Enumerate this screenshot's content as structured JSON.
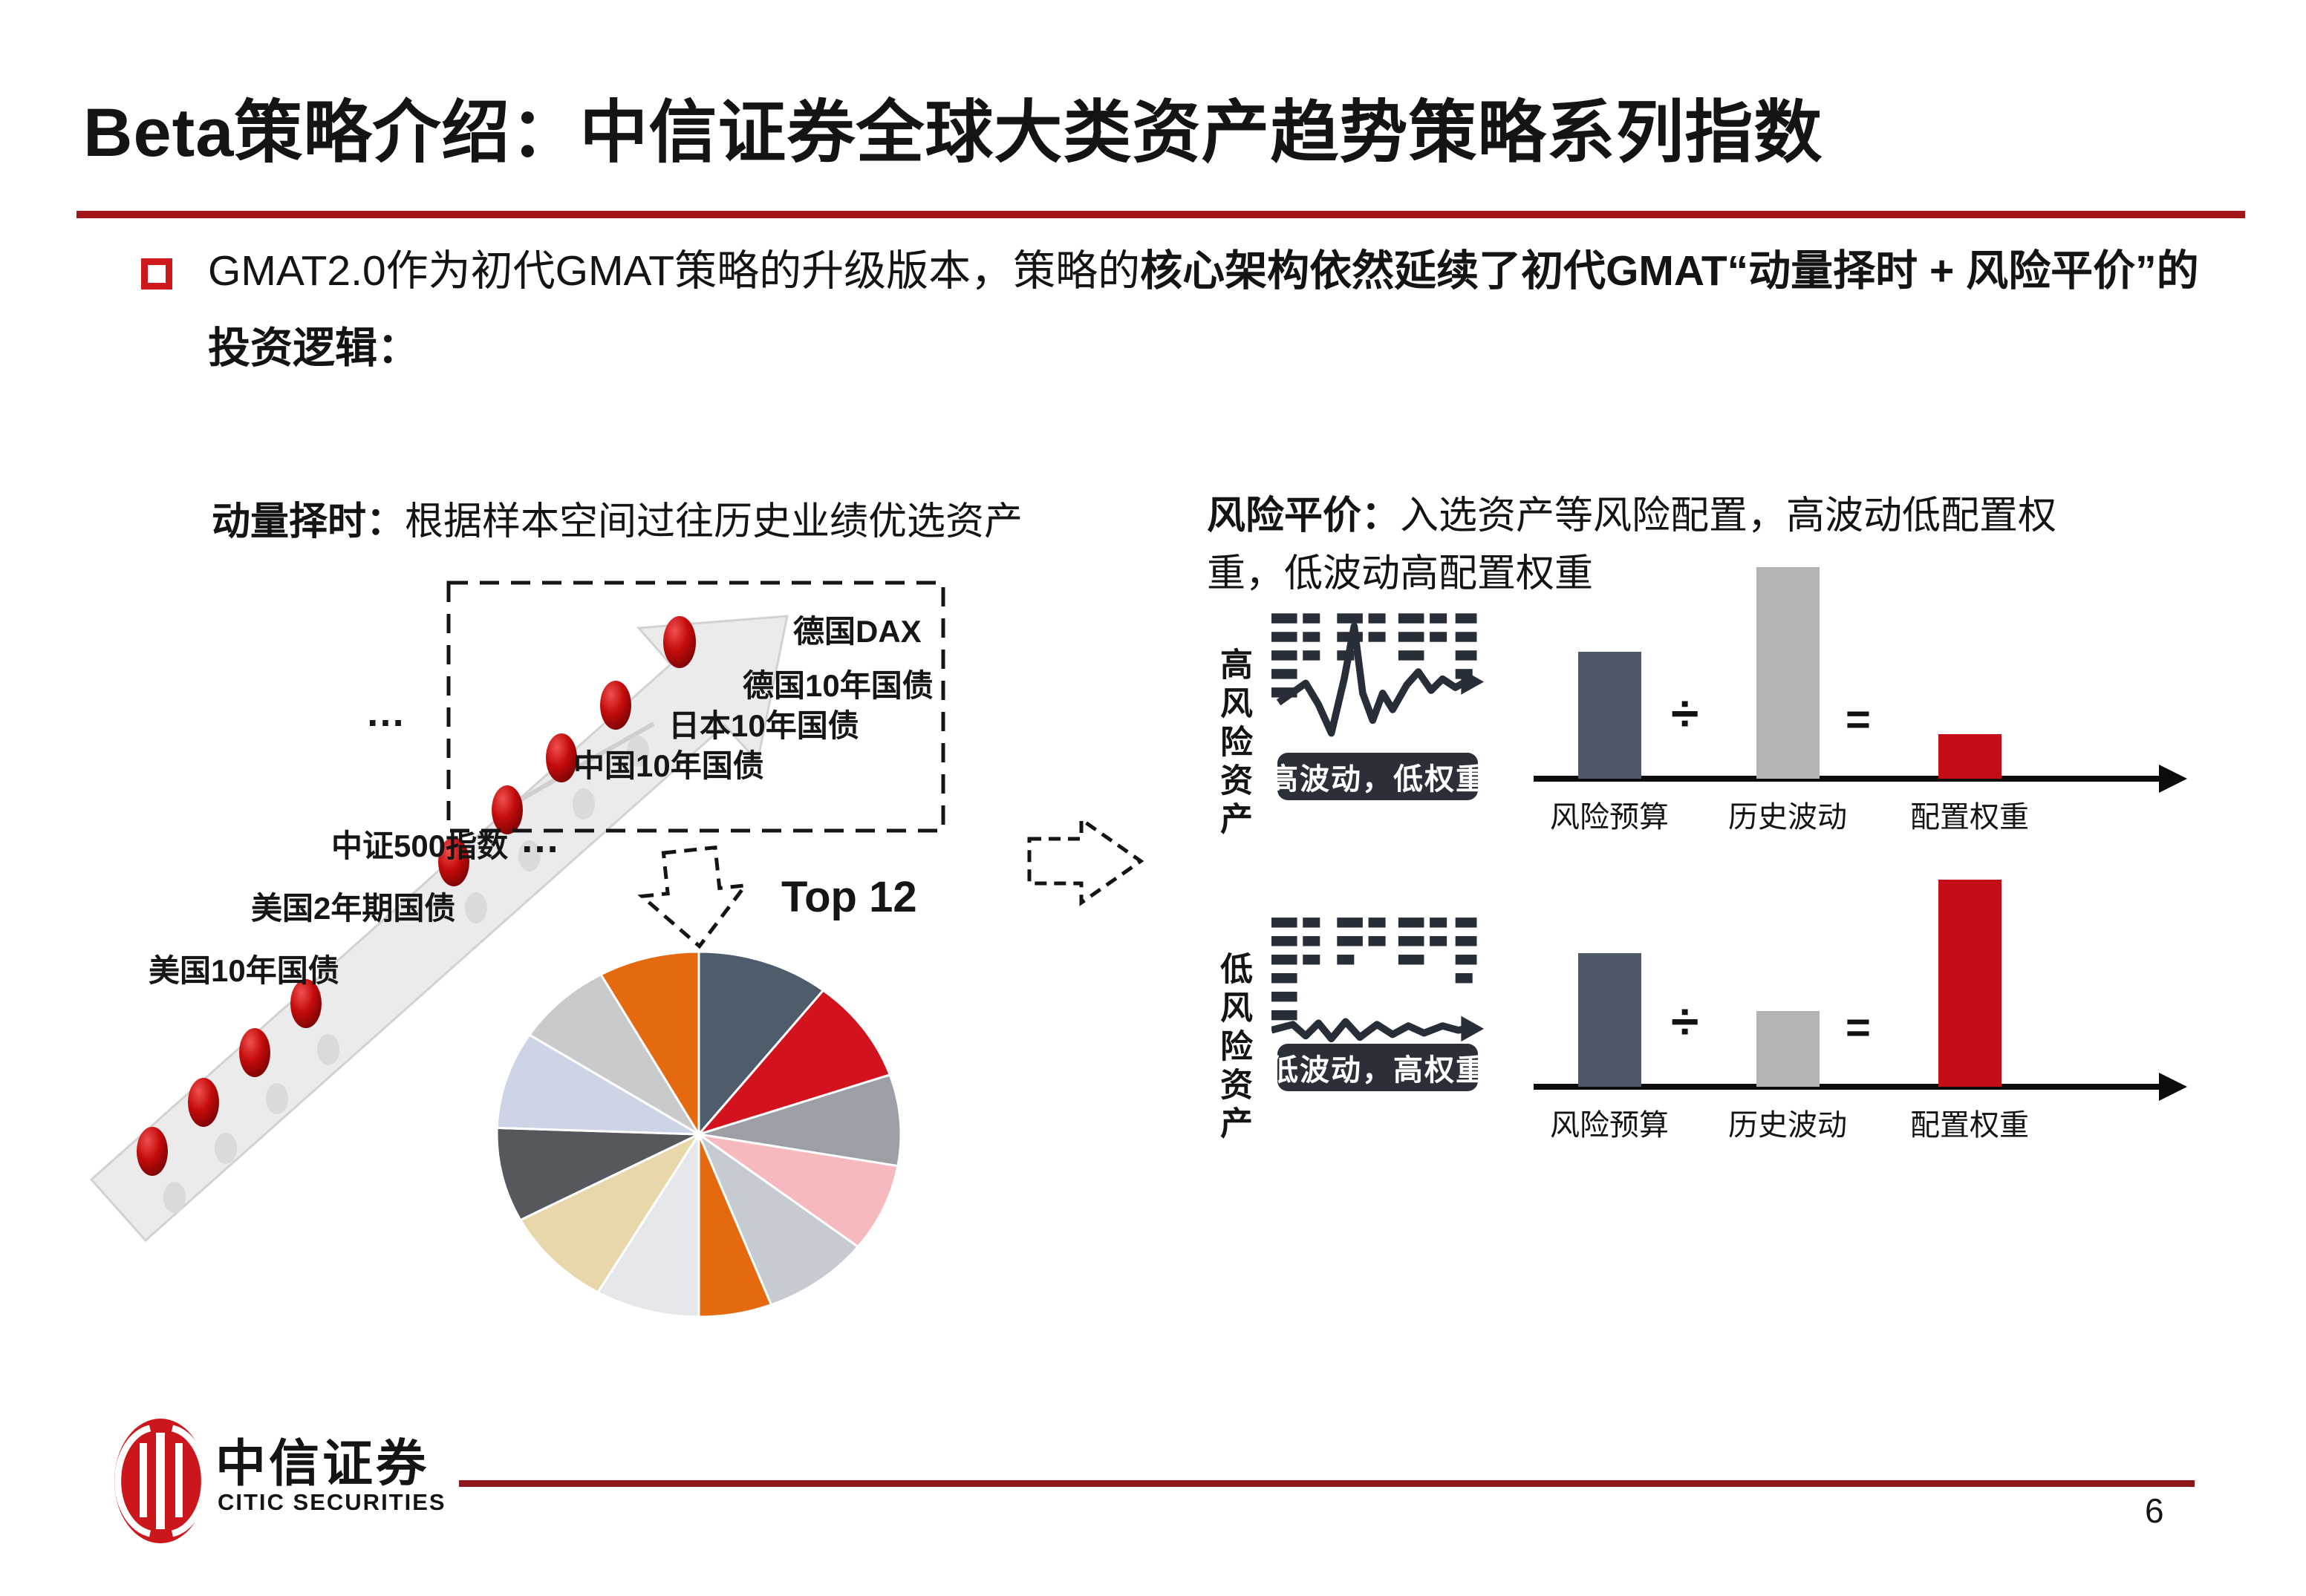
{
  "slide": {
    "title": "Beta策略介绍：中信证券全球大类资产趋势策略系列指数",
    "page_number": "6"
  },
  "bullet": {
    "line1_regular": "GMAT2.0作为初代GMAT策略的升级版本，策略的",
    "line1_bold": "核心架构依然延续了初代GMAT“动量择时 + 风险平价”的",
    "line2_bold": "投资逻辑："
  },
  "momentum": {
    "heading_bold": "动量择时：",
    "heading_rest": "根据样本空间过往历史业绩优选资产",
    "assets": [
      "德国DAX",
      "德国10年国债",
      "日本10年国债",
      "中国10年国债",
      "中证500指数",
      "美国2年期国债",
      "美国10年国债"
    ],
    "ellipsis": "…",
    "top_label": "Top 12"
  },
  "risk_parity": {
    "heading_bold": "风险平价：",
    "heading_rest_line1": "入选资产等风险配置，高波动低配置权",
    "heading_rest_line2": "重，低波动高配置权重",
    "high": {
      "side_label": "高风险资产",
      "badge": "高波动，低权重"
    },
    "low": {
      "side_label": "低风险资产",
      "badge": "低波动，高权重"
    },
    "divide_symbol": "÷",
    "equals_symbol": "="
  },
  "logo": {
    "cn": "中信证券",
    "en": "CITIC SECURITIES"
  },
  "colors": {
    "title_rule": "#a21518",
    "footer_rule": "#8d171a",
    "bullet_red": "#ce181b",
    "citic_red": "#cb171c",
    "icon_dark": "#272e38",
    "bar_dark": "#4d5968",
    "bar_gray": "#b3b3b3",
    "bar_red": "#c40d16"
  },
  "chart_data": [
    {
      "type": "pie",
      "annotation": "Top 12",
      "description": "12 selected assets, roughly equal weights (no slice labels shown)",
      "values_deg": [
        38,
        33,
        29,
        28,
        31,
        21,
        30,
        32,
        30,
        31,
        28,
        29
      ],
      "colors": [
        "#4e5c6c",
        "#d2121d",
        "#9ca0a6",
        "#f6b9bd",
        "#c6cbd2",
        "#e5690e",
        "#e6e7ea",
        "#e8d7ab",
        "#55585d",
        "#ccd4e6",
        "#c9cacc",
        "#e5690e"
      ]
    },
    {
      "type": "bar",
      "context": "高风险资产：高波动，低权重",
      "categories": [
        "风险预算",
        "历史波动",
        "配置权重"
      ],
      "values": [
        57,
        95,
        20
      ],
      "ylim": [
        0,
        100
      ],
      "colors": [
        "#4d5968",
        "#b3b3b3",
        "#c40d16"
      ]
    },
    {
      "type": "bar",
      "context": "低风险资产：低波动，高权重",
      "categories": [
        "风险预算",
        "历史波动",
        "配置权重"
      ],
      "values": [
        60,
        34,
        93
      ],
      "ylim": [
        0,
        100
      ],
      "colors": [
        "#4d5968",
        "#b3b3b3",
        "#c40d16"
      ]
    }
  ]
}
